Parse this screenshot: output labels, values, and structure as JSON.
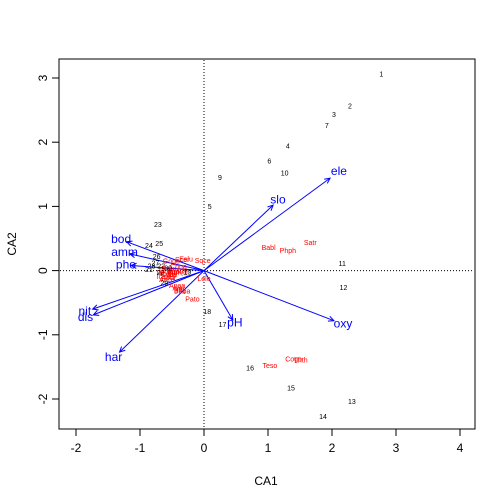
{
  "chart_data": {
    "type": "scatter",
    "subtype": "biplot",
    "xlabel": "CA1",
    "ylabel": "CA2",
    "xlim": [
      -2.25,
      4.05
    ],
    "ylim": [
      -2.5,
      3.3
    ],
    "xticks": [
      "-2",
      "-1",
      "0",
      "1",
      "2",
      "3",
      "4"
    ],
    "yticks": [
      "-2",
      "-1",
      "0",
      "1",
      "2",
      "3"
    ],
    "colors": {
      "sites": "#000000",
      "species": "#ff0000",
      "variables": "#0000ff"
    },
    "sites": [
      {
        "label": "1",
        "x": 2.77,
        "y": 3.05
      },
      {
        "label": "2",
        "x": 2.28,
        "y": 2.55
      },
      {
        "label": "3",
        "x": 2.03,
        "y": 2.42
      },
      {
        "label": "7",
        "x": 1.92,
        "y": 2.25
      },
      {
        "label": "4",
        "x": 1.31,
        "y": 1.93
      },
      {
        "label": "6",
        "x": 1.02,
        "y": 1.7
      },
      {
        "label": "10",
        "x": 1.26,
        "y": 1.51
      },
      {
        "label": "9",
        "x": 0.25,
        "y": 1.44
      },
      {
        "label": "5",
        "x": 0.09,
        "y": 0.99
      },
      {
        "label": "23",
        "x": -0.72,
        "y": 0.71
      },
      {
        "label": "25",
        "x": -0.7,
        "y": 0.41
      },
      {
        "label": "24",
        "x": -0.86,
        "y": 0.38
      },
      {
        "label": "26",
        "x": -0.74,
        "y": 0.21
      },
      {
        "label": "27",
        "x": -0.76,
        "y": 0.11
      },
      {
        "label": "28",
        "x": -0.82,
        "y": 0.06
      },
      {
        "label": "22",
        "x": -0.67,
        "y": 0.06
      },
      {
        "label": "30",
        "x": -0.56,
        "y": 0.03
      },
      {
        "label": "21",
        "x": -0.86,
        "y": 0.01
      },
      {
        "label": "20",
        "x": -0.68,
        "y": -0.04
      },
      {
        "label": "19",
        "x": -0.26,
        "y": -0.03
      },
      {
        "label": "29",
        "x": -0.62,
        "y": -0.2
      },
      {
        "label": "11",
        "x": 2.16,
        "y": 0.1
      },
      {
        "label": "12",
        "x": 2.18,
        "y": -0.27
      },
      {
        "label": "18",
        "x": 0.05,
        "y": -0.65
      },
      {
        "label": "17",
        "x": 0.29,
        "y": -0.85
      },
      {
        "label": "16",
        "x": 0.72,
        "y": -1.53
      },
      {
        "label": "15",
        "x": 1.36,
        "y": -1.84
      },
      {
        "label": "13",
        "x": 2.31,
        "y": -2.05
      },
      {
        "label": "14",
        "x": 1.86,
        "y": -2.28
      }
    ],
    "species": [
      {
        "label": "Satr",
        "x": 1.66,
        "y": 0.43
      },
      {
        "label": "Babl",
        "x": 1.01,
        "y": 0.35
      },
      {
        "label": "Phph",
        "x": 1.31,
        "y": 0.3
      },
      {
        "label": "Thth",
        "x": 1.51,
        "y": -1.4
      },
      {
        "label": "Cogo",
        "x": 1.4,
        "y": -1.39
      },
      {
        "label": "Teso",
        "x": 1.03,
        "y": -1.49
      },
      {
        "label": "Lele",
        "x": 0.0,
        "y": -0.13
      },
      {
        "label": "Pato",
        "x": -0.18,
        "y": -0.45
      },
      {
        "label": "Alal",
        "x": -0.4,
        "y": -0.28
      },
      {
        "label": "Blbj",
        "x": -0.38,
        "y": -0.31
      },
      {
        "label": "Baba",
        "x": -0.34,
        "y": -0.33
      },
      {
        "label": "Anan",
        "x": -0.42,
        "y": -0.24
      },
      {
        "label": "Scer",
        "x": -0.34,
        "y": 0.16
      },
      {
        "label": "Sqce",
        "x": -0.02,
        "y": 0.15
      },
      {
        "label": "Eslu",
        "x": -0.28,
        "y": 0.17
      },
      {
        "label": "Gogo",
        "x": -0.51,
        "y": 0.14
      },
      {
        "label": "Ruru",
        "x": -0.55,
        "y": 0.02
      },
      {
        "label": "Rham",
        "x": -0.59,
        "y": -0.05
      },
      {
        "label": "Legi",
        "x": -0.6,
        "y": 0.0
      },
      {
        "label": "Cyca",
        "x": -0.55,
        "y": -0.07
      },
      {
        "label": "Titi",
        "x": -0.5,
        "y": -0.08
      },
      {
        "label": "Abbr",
        "x": -0.55,
        "y": -0.12
      },
      {
        "label": "Icme",
        "x": -0.62,
        "y": -0.1
      },
      {
        "label": "Acce",
        "x": -0.58,
        "y": -0.15
      },
      {
        "label": "Chna",
        "x": -0.4,
        "y": 0.05
      },
      {
        "label": "Pefl",
        "x": -0.35,
        "y": -0.05
      },
      {
        "label": "Albi",
        "x": -0.48,
        "y": -0.04
      },
      {
        "label": "Anan2",
        "x": -0.45,
        "y": -0.02
      }
    ],
    "variables": [
      {
        "label": "ele",
        "x": 1.97,
        "y": 1.44
      },
      {
        "label": "slo",
        "x": 1.08,
        "y": 1.02
      },
      {
        "label": "oxy",
        "x": 2.03,
        "y": -0.78
      },
      {
        "label": "pH",
        "x": 0.45,
        "y": -0.77
      },
      {
        "label": "har",
        "x": -1.32,
        "y": -1.27
      },
      {
        "label": "dis",
        "x": -1.73,
        "y": -0.69
      },
      {
        "label": "nit",
        "x": -1.74,
        "y": -0.6
      },
      {
        "label": "pho",
        "x": -1.14,
        "y": 0.08
      },
      {
        "label": "amm",
        "x": -1.16,
        "y": 0.26
      },
      {
        "label": "bod",
        "x": -1.21,
        "y": 0.45
      }
    ]
  }
}
